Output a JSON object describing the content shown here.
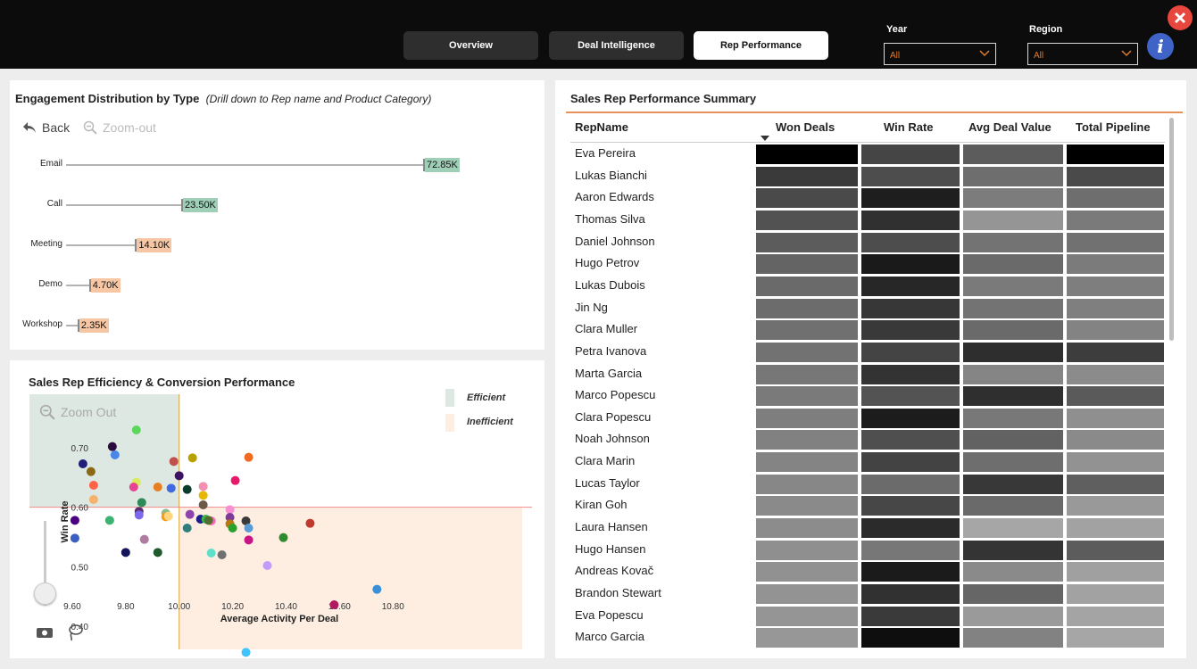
{
  "nav": {
    "tabs": [
      {
        "label": "Overview",
        "active": false
      },
      {
        "label": "Deal Intelligence",
        "active": false
      },
      {
        "label": "Rep Performance",
        "active": true
      }
    ]
  },
  "filters": {
    "year": {
      "label": "Year",
      "value": "All"
    },
    "region": {
      "label": "Region",
      "value": "All"
    }
  },
  "info_glyph": "i",
  "colors": {
    "accent": "#e07b2a",
    "efficient": "#dde8e2",
    "inefficient": "#fdeee1",
    "positive": "#9fcfb6",
    "negative": "#f7c7a5"
  },
  "engagement": {
    "title": "Engagement Distribution by Type",
    "subtitle": "(Drill down to Rep name and Product Category)",
    "back_label": "Back",
    "zoom_out_label": "Zoom-out",
    "bars": [
      {
        "category": "Email",
        "value": 72.85,
        "label": "72.85K",
        "tone": "positive"
      },
      {
        "category": "Call",
        "value": 23.5,
        "label": "23.50K",
        "tone": "positive"
      },
      {
        "category": "Meeting",
        "value": 14.1,
        "label": "14.10K",
        "tone": "negative"
      },
      {
        "category": "Demo",
        "value": 4.7,
        "label": "4.70K",
        "tone": "negative"
      },
      {
        "category": "Workshop",
        "value": 2.35,
        "label": "2.35K",
        "tone": "negative"
      }
    ]
  },
  "scatter": {
    "title": "Sales Rep Efficiency & Conversion Performance",
    "zoom_out_label": "Zoom Out",
    "legend": [
      {
        "label": "Efficient"
      },
      {
        "label": "Inefficient"
      }
    ],
    "chart_data": {
      "type": "scatter",
      "xlabel": "Average Activity Per Deal",
      "ylabel": "Win Rate",
      "xlim": [
        9.44,
        11.28
      ],
      "ylim": [
        0.34,
        0.79
      ],
      "x_ticks": [
        "9.60",
        "9.80",
        "10.00",
        "10.20",
        "10.40",
        "10.60",
        "10.80"
      ],
      "y_ticks": [
        "0.70",
        "0.60",
        "0.50",
        "0.40"
      ],
      "ref_x": 10.0,
      "ref_y": 0.6,
      "points": [
        {
          "x": 9.64,
          "y": 0.673,
          "c": "#1f1f7a"
        },
        {
          "x": 9.67,
          "y": 0.66,
          "c": "#8b6914"
        },
        {
          "x": 9.68,
          "y": 0.637,
          "c": "#ff6347"
        },
        {
          "x": 9.68,
          "y": 0.613,
          "c": "#f6b26b"
        },
        {
          "x": 9.61,
          "y": 0.578,
          "c": "#4b0082"
        },
        {
          "x": 9.61,
          "y": 0.548,
          "c": "#3b5fc0"
        },
        {
          "x": 9.75,
          "y": 0.702,
          "c": "#2b0a3d"
        },
        {
          "x": 9.76,
          "y": 0.688,
          "c": "#4a86e8"
        },
        {
          "x": 9.84,
          "y": 0.73,
          "c": "#5cd65c"
        },
        {
          "x": 9.84,
          "y": 0.642,
          "c": "#d9ea5c"
        },
        {
          "x": 9.83,
          "y": 0.634,
          "c": "#e84393"
        },
        {
          "x": 9.74,
          "y": 0.578,
          "c": "#3cb371"
        },
        {
          "x": 9.86,
          "y": 0.608,
          "c": "#2e8b57"
        },
        {
          "x": 9.85,
          "y": 0.593,
          "c": "#5b2c6f"
        },
        {
          "x": 9.85,
          "y": 0.587,
          "c": "#7b68ee"
        },
        {
          "x": 9.87,
          "y": 0.546,
          "c": "#b07ba0"
        },
        {
          "x": 9.8,
          "y": 0.524,
          "c": "#14145a"
        },
        {
          "x": 9.92,
          "y": 0.524,
          "c": "#1e5a2e"
        },
        {
          "x": 9.92,
          "y": 0.634,
          "c": "#e67e22"
        },
        {
          "x": 9.95,
          "y": 0.59,
          "c": "#8fbc8f"
        },
        {
          "x": 9.95,
          "y": 0.584,
          "c": "#f39c12"
        },
        {
          "x": 9.96,
          "y": 0.585,
          "c": "#ffd580"
        },
        {
          "x": 9.97,
          "y": 0.632,
          "c": "#4169e1"
        },
        {
          "x": 9.98,
          "y": 0.677,
          "c": "#c0504d"
        },
        {
          "x": 10.0,
          "y": 0.653,
          "c": "#3c1361"
        },
        {
          "x": 10.03,
          "y": 0.63,
          "c": "#0b3d2e"
        },
        {
          "x": 10.05,
          "y": 0.683,
          "c": "#b8a000"
        },
        {
          "x": 10.04,
          "y": 0.588,
          "c": "#8e44ad"
        },
        {
          "x": 10.03,
          "y": 0.565,
          "c": "#2f7f7f"
        },
        {
          "x": 10.08,
          "y": 0.58,
          "c": "#1c1c8c"
        },
        {
          "x": 10.09,
          "y": 0.635,
          "c": "#f48fb1"
        },
        {
          "x": 10.09,
          "y": 0.62,
          "c": "#e6b800"
        },
        {
          "x": 10.09,
          "y": 0.604,
          "c": "#6b5b45"
        },
        {
          "x": 10.1,
          "y": 0.58,
          "c": "#39b54a"
        },
        {
          "x": 10.12,
          "y": 0.577,
          "c": "#ff69b4"
        },
        {
          "x": 10.11,
          "y": 0.578,
          "c": "#4f6f2f"
        },
        {
          "x": 10.12,
          "y": 0.523,
          "c": "#5fe0c8"
        },
        {
          "x": 10.16,
          "y": 0.52,
          "c": "#707070"
        },
        {
          "x": 10.19,
          "y": 0.596,
          "c": "#f78fd6"
        },
        {
          "x": 10.19,
          "y": 0.583,
          "c": "#7d3c98"
        },
        {
          "x": 10.19,
          "y": 0.572,
          "c": "#b9770e"
        },
        {
          "x": 10.2,
          "y": 0.565,
          "c": "#2ca02c"
        },
        {
          "x": 10.21,
          "y": 0.645,
          "c": "#e6196b"
        },
        {
          "x": 10.25,
          "y": 0.577,
          "c": "#3a3a3a"
        },
        {
          "x": 10.26,
          "y": 0.565,
          "c": "#5b9bd5"
        },
        {
          "x": 10.26,
          "y": 0.545,
          "c": "#c71585"
        },
        {
          "x": 10.26,
          "y": 0.684,
          "c": "#f06a21"
        },
        {
          "x": 10.25,
          "y": 0.356,
          "c": "#40c4ff"
        },
        {
          "x": 10.33,
          "y": 0.502,
          "c": "#c39bff"
        },
        {
          "x": 10.39,
          "y": 0.549,
          "c": "#2e8b2e"
        },
        {
          "x": 10.49,
          "y": 0.573,
          "c": "#c0392b"
        },
        {
          "x": 10.58,
          "y": 0.436,
          "c": "#b0185f"
        },
        {
          "x": 10.74,
          "y": 0.462,
          "c": "#3a8fd9"
        }
      ]
    }
  },
  "table": {
    "title": "Sales Rep Performance Summary",
    "columns": [
      "RepName",
      "Won Deals",
      "Win Rate",
      "Avg Deal Value",
      "Total Pipeline"
    ],
    "sort_column": "Won Deals",
    "rows": [
      {
        "name": "Eva Pereira",
        "shades": [
          "#000000",
          "#454545",
          "#5c5c5c",
          "#000000"
        ]
      },
      {
        "name": "Lukas Bianchi",
        "shades": [
          "#3a3a3a",
          "#4d4d4d",
          "#6e6e6e",
          "#4a4a4a"
        ]
      },
      {
        "name": "Aaron Edwards",
        "shades": [
          "#4a4a4a",
          "#1e1e1e",
          "#7c7c7c",
          "#6e6e6e"
        ]
      },
      {
        "name": "Thomas Silva",
        "shades": [
          "#525252",
          "#303030",
          "#959595",
          "#7a7a7a"
        ]
      },
      {
        "name": "Daniel Johnson",
        "shades": [
          "#5c5c5c",
          "#4d4d4d",
          "#737373",
          "#717171"
        ]
      },
      {
        "name": "Hugo Petrov",
        "shades": [
          "#646464",
          "#1a1a1a",
          "#6a6a6a",
          "#7b7b7b"
        ]
      },
      {
        "name": "Lukas Dubois",
        "shades": [
          "#6a6a6a",
          "#272727",
          "#7a7a7a",
          "#7e7e7e"
        ]
      },
      {
        "name": "Jin Ng",
        "shades": [
          "#6c6c6c",
          "#373737",
          "#737373",
          "#7f7f7f"
        ]
      },
      {
        "name": "Clara Muller",
        "shades": [
          "#707070",
          "#393939",
          "#6a6a6a",
          "#838383"
        ]
      },
      {
        "name": "Petra Ivanova",
        "shades": [
          "#727272",
          "#444444",
          "#2e2e2e",
          "#3d3d3d"
        ]
      },
      {
        "name": "Marta Garcia",
        "shades": [
          "#777777",
          "#333333",
          "#858585",
          "#8b8b8b"
        ]
      },
      {
        "name": "Marco Popescu",
        "shades": [
          "#7a7a7a",
          "#535353",
          "#2f2f2f",
          "#5a5a5a"
        ]
      },
      {
        "name": "Clara Popescu",
        "shades": [
          "#7e7e7e",
          "#1c1c1c",
          "#787878",
          "#8f8f8f"
        ]
      },
      {
        "name": "Noah Johnson",
        "shades": [
          "#818181",
          "#4f4f4f",
          "#626262",
          "#8a8a8a"
        ]
      },
      {
        "name": "Clara Marin",
        "shades": [
          "#848484",
          "#434343",
          "#6e6e6e",
          "#929292"
        ]
      },
      {
        "name": "Lucas Taylor",
        "shades": [
          "#878787",
          "#6b6b6b",
          "#383838",
          "#5f5f5f"
        ]
      },
      {
        "name": "Kiran Goh",
        "shades": [
          "#8a8a8a",
          "#474747",
          "#6a6a6a",
          "#999999"
        ]
      },
      {
        "name": "Laura Hansen",
        "shades": [
          "#8c8c8c",
          "#2b2b2b",
          "#a6a6a6",
          "#a2a2a2"
        ]
      },
      {
        "name": "Hugo Hansen",
        "shades": [
          "#8f8f8f",
          "#777777",
          "#343434",
          "#5c5c5c"
        ]
      },
      {
        "name": "Andreas Kovač",
        "shades": [
          "#919191",
          "#1b1b1b",
          "#8a8a8a",
          "#a0a0a0"
        ]
      },
      {
        "name": "Brandon Stewart",
        "shades": [
          "#939393",
          "#313131",
          "#666666",
          "#a2a2a2"
        ]
      },
      {
        "name": "Eva Popescu",
        "shades": [
          "#959595",
          "#3a3a3a",
          "#9a9a9a",
          "#a4a4a4"
        ]
      },
      {
        "name": "Marco Garcia",
        "shades": [
          "#979797",
          "#0e0e0e",
          "#828282",
          "#a6a6a6"
        ]
      }
    ]
  }
}
